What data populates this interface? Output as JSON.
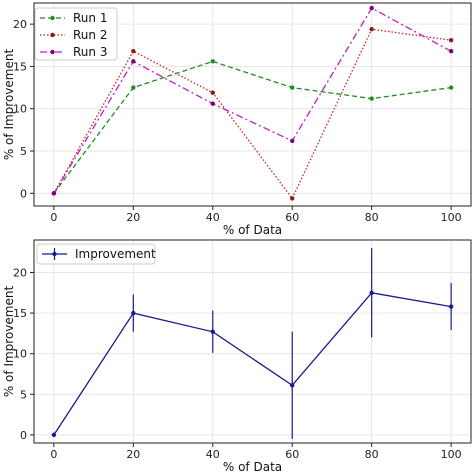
{
  "chart_data": [
    {
      "type": "line",
      "xlabel": "% of Data",
      "ylabel": "% of Improvement",
      "x": [
        0,
        20,
        40,
        60,
        80,
        100
      ],
      "xticks": [
        0,
        20,
        40,
        60,
        80,
        100
      ],
      "yticks": [
        0,
        5,
        10,
        15,
        20
      ],
      "xlim": [
        -5,
        105
      ],
      "ylim": [
        -1.5,
        22.5
      ],
      "grid": true,
      "legend_position": "top-left",
      "series": [
        {
          "name": "Run 1",
          "values": [
            0,
            12.5,
            15.6,
            12.5,
            11.2,
            12.5
          ],
          "color": "#228B22",
          "dash": "dashed",
          "marker_color": "#228B22"
        },
        {
          "name": "Run 2",
          "values": [
            0,
            16.8,
            11.9,
            -0.6,
            19.4,
            18.1
          ],
          "color": "#cc2222",
          "dash": "dotted",
          "marker_color": "#8B1A1A"
        },
        {
          "name": "Run 3",
          "values": [
            0,
            15.6,
            10.6,
            6.2,
            21.9,
            16.8
          ],
          "color": "#bb22bb",
          "dash": "dashdot",
          "marker_color": "#800080"
        }
      ]
    },
    {
      "type": "line",
      "xlabel": "% of Data",
      "ylabel": "% of Improvement",
      "x": [
        0,
        20,
        40,
        60,
        80,
        100
      ],
      "xticks": [
        0,
        20,
        40,
        60,
        80,
        100
      ],
      "yticks": [
        0,
        5,
        10,
        15,
        20
      ],
      "xlim": [
        -5,
        105
      ],
      "ylim": [
        -1,
        24
      ],
      "grid": true,
      "legend_position": "top-left",
      "series": [
        {
          "name": "Improvement",
          "values": [
            0,
            15.0,
            12.7,
            6.1,
            17.5,
            15.8
          ],
          "errors": [
            0,
            2.3,
            2.6,
            6.6,
            5.5,
            2.9
          ],
          "color": "#1a1a8c"
        }
      ]
    }
  ]
}
